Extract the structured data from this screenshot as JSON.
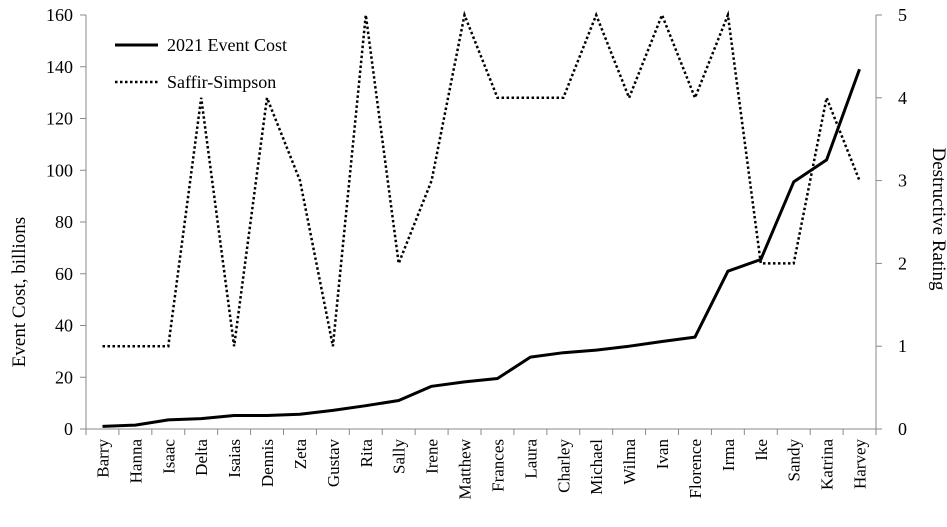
{
  "chart_data": {
    "type": "line",
    "categories": [
      "Barry",
      "Hanna",
      "Isaac",
      "Delta",
      "Isaias",
      "Dennis",
      "Zeta",
      "Gustav",
      "Rita",
      "Sally",
      "Irene",
      "Matthew",
      "Frances",
      "Laura",
      "Charley",
      "Michael",
      "Wilma",
      "Ivan",
      "Florence",
      "Irma",
      "Ike",
      "Sandy",
      "Katrina",
      "Harvey"
    ],
    "series": [
      {
        "name": "2021 Event Cost",
        "axis": "left",
        "style": "solid",
        "values": [
          1.0,
          1.5,
          3.5,
          4.0,
          5.2,
          5.2,
          5.7,
          7.2,
          9.0,
          11.0,
          16.5,
          18.2,
          19.5,
          27.8,
          29.5,
          30.5,
          32.0,
          33.8,
          35.5,
          61.0,
          65.5,
          95.5,
          104.0,
          139.0
        ]
      },
      {
        "name": "Saffir-Simpson",
        "axis": "right",
        "style": "dotted",
        "values": [
          1,
          1,
          1,
          4,
          1,
          4,
          3,
          1,
          5,
          2,
          3,
          5,
          4,
          4,
          4,
          5,
          4,
          5,
          4,
          5,
          2,
          2,
          4,
          3
        ]
      }
    ],
    "ylabel": "Event Cost, billions",
    "y2label": "Destructive Rating",
    "ylim": [
      0,
      160
    ],
    "y2lim": [
      0,
      5
    ],
    "yticks": [
      "0",
      "20",
      "40",
      "60",
      "80",
      "100",
      "120",
      "140",
      "160"
    ],
    "y2ticks": [
      "0",
      "1",
      "2",
      "3",
      "4",
      "5"
    ],
    "legend_position": "top-left",
    "grid": false
  }
}
